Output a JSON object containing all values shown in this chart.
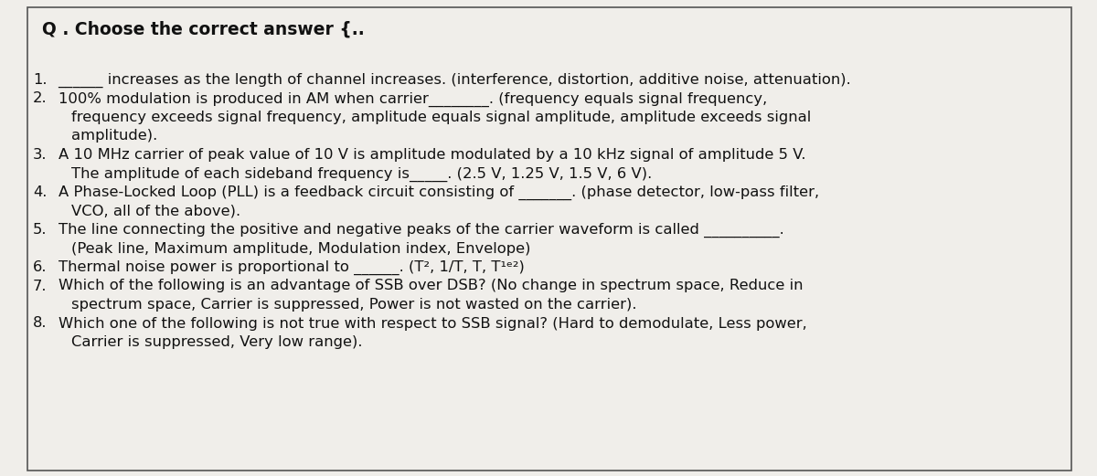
{
  "bg_color": "#f0eeea",
  "border_color": "#555555",
  "text_color": "#111111",
  "title": "Q . Choose the correct answer {..",
  "title_fontsize": 13.5,
  "body_fontsize": 11.8,
  "figsize": [
    12.0,
    5.21
  ],
  "dpi": 100,
  "items": [
    {
      "num": "1.",
      "lines": [
        "______ increases as the length of channel increases. (interference, distortion, additive noise, attenuation)."
      ]
    },
    {
      "num": "2.",
      "lines": [
        "100% modulation is produced in AM when carrier________. (frequency equals signal frequency,",
        "frequency exceeds signal frequency, amplitude equals signal amplitude, amplitude exceeds signal",
        "amplitude)."
      ]
    },
    {
      "num": "3.",
      "lines": [
        "A 10 MHz carrier of peak value of 10 V is amplitude modulated by a 10 kHz signal of amplitude 5 V.",
        "The amplitude of each sideband frequency is_____. (2.5 V, 1.25 V, 1.5 V, 6 V)."
      ]
    },
    {
      "num": "4.",
      "lines": [
        "A Phase-Locked Loop (PLL) is a feedback circuit consisting of _______. (phase detector, low-pass filter,",
        "VCO, all of the above)."
      ]
    },
    {
      "num": "5.",
      "lines": [
        "The line connecting the positive and negative peaks of the carrier waveform is called __________.",
        "(Peak line, Maximum amplitude, Modulation index, Envelope)"
      ]
    },
    {
      "num": "6.",
      "lines": [
        "Thermal noise power is proportional to ______. (T², 1/T, T, T¹ᵉ²)"
      ]
    },
    {
      "num": "7.",
      "lines": [
        "Which of the following is an advantage of SSB over DSB? (No change in spectrum space, Reduce in",
        "spectrum space, Carrier is suppressed, Power is not wasted on the carrier)."
      ]
    },
    {
      "num": "8.",
      "lines": [
        "Which one of the following is not true with respect to SSB signal? (Hard to demodulate, Less power,",
        "Carrier is suppressed, Very low range)."
      ]
    }
  ]
}
